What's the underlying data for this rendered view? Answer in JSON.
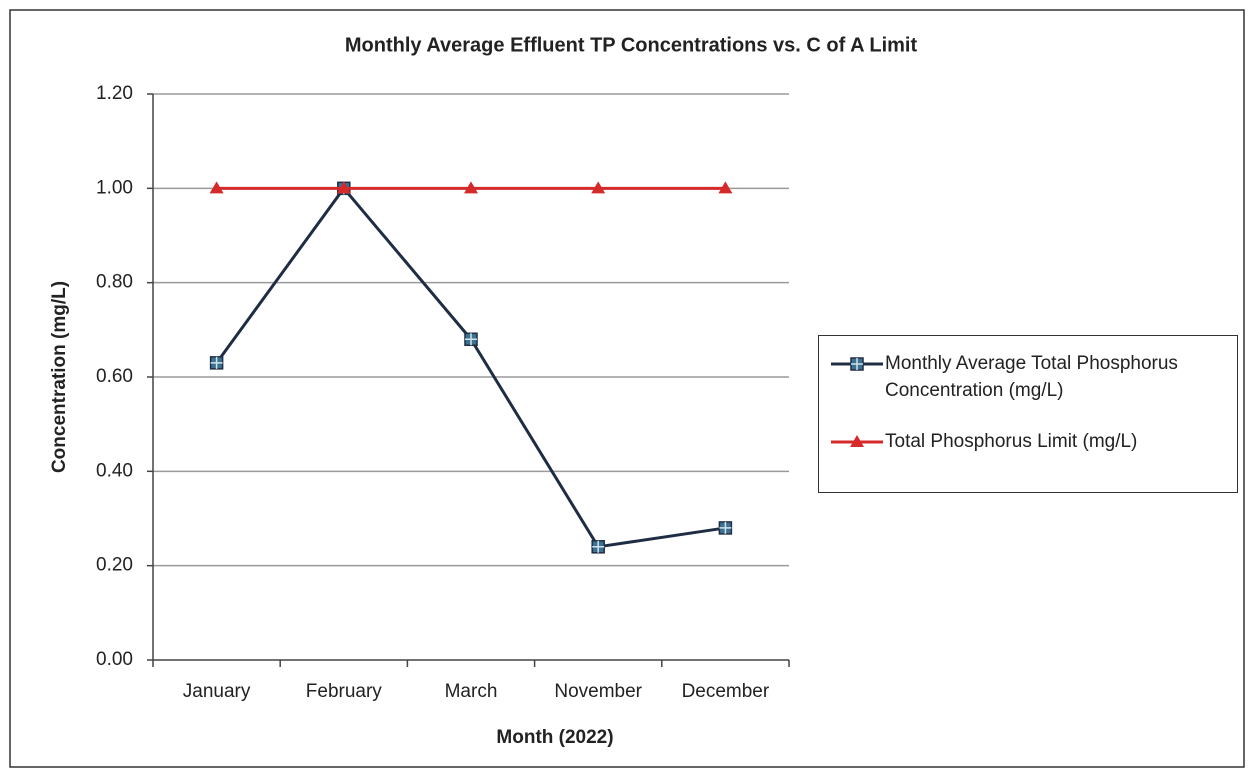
{
  "chart_data": {
    "type": "line",
    "title": "Monthly Average Effluent TP Concentrations vs. C of A Limit",
    "xlabel": "Month (2022)",
    "ylabel": "Concentration (mg/L)",
    "categories": [
      "January",
      "February",
      "March",
      "November",
      "December"
    ],
    "series": [
      {
        "name": "Monthly Average Total Phosphorus Concentration (mg/L)",
        "color": "#1f2d44",
        "marker": "square",
        "values": [
          0.63,
          1.0,
          0.68,
          0.24,
          0.28
        ]
      },
      {
        "name": "Total Phosphorus Limit (mg/L)",
        "color": "#d62a2a",
        "marker": "triangle",
        "values": [
          1.0,
          1.0,
          1.0,
          1.0,
          1.0
        ]
      }
    ],
    "ylim": [
      0,
      1.2
    ],
    "yticks": [
      {
        "value": 0,
        "label": "0.00"
      },
      {
        "value": 0.2,
        "label": "0.20"
      },
      {
        "value": 0.4,
        "label": "0.40"
      },
      {
        "value": 0.6,
        "label": "0.60"
      },
      {
        "value": 0.8,
        "label": "0.80"
      },
      {
        "value": 1.0,
        "label": "1.00"
      },
      {
        "value": 1.2,
        "label": "1.20"
      }
    ],
    "grid": true,
    "legend": "right"
  }
}
